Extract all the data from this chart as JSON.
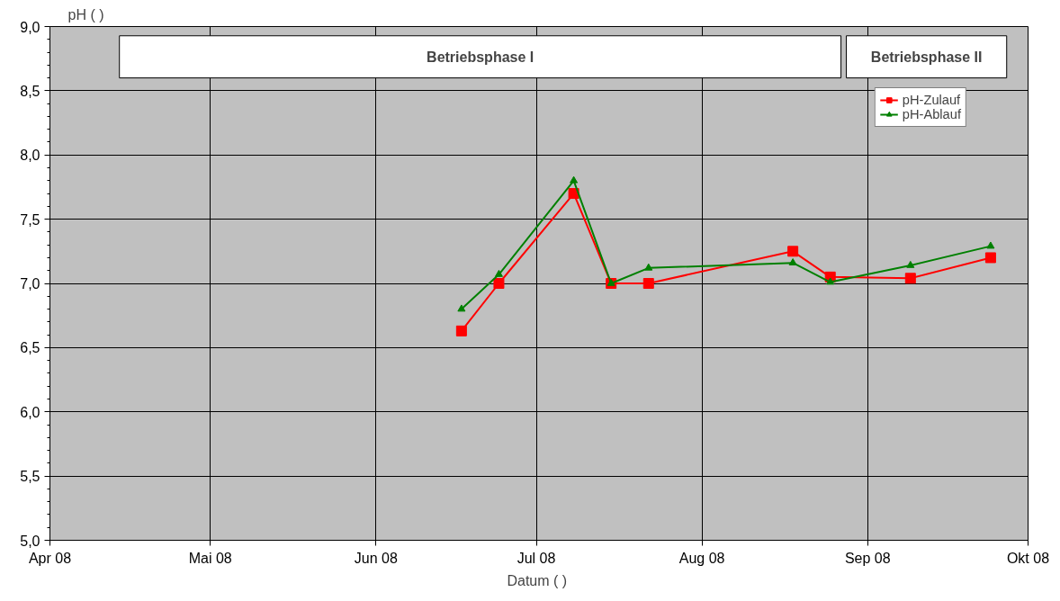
{
  "chart_data": {
    "type": "line",
    "xlabel": "Datum (  )",
    "ylabel": "pH ( )",
    "bands": [
      {
        "axis": "x",
        "from": "2008-04-14",
        "to": "2008-08-27",
        "label": "Betriebsphase I",
        "color": "#ffffff"
      },
      {
        "axis": "x",
        "from": "2008-08-28",
        "to": "2008-09-27",
        "label": "Betriebsphase II",
        "color": "#ffffff"
      }
    ],
    "x": [
      "2008-06-17",
      "2008-06-24",
      "2008-07-08",
      "2008-07-15",
      "2008-07-22",
      "2008-08-18",
      "2008-08-25",
      "2008-09-09",
      "2008-09-24"
    ],
    "series": [
      {
        "name": "pH-Zulauf",
        "color": "#ff0000",
        "marker": "square",
        "values": [
          6.63,
          7.0,
          7.7,
          7.0,
          7.0,
          7.25,
          7.05,
          7.04,
          7.2
        ]
      },
      {
        "name": "pH-Ablauf",
        "color": "#008000",
        "marker": "triangle",
        "values": [
          6.8,
          7.07,
          7.8,
          7.0,
          7.12,
          7.16,
          7.01,
          7.14,
          7.29
        ]
      }
    ],
    "xlim": [
      "2008-04-01",
      "2008-10-01"
    ],
    "xticks": [
      {
        "value": "2008-04-01",
        "label": "Apr 08"
      },
      {
        "value": "2008-05-01",
        "label": "Mai 08"
      },
      {
        "value": "2008-06-01",
        "label": "Jun 08"
      },
      {
        "value": "2008-07-01",
        "label": "Jul 08"
      },
      {
        "value": "2008-08-01",
        "label": "Aug 08"
      },
      {
        "value": "2008-09-01",
        "label": "Sep 08"
      },
      {
        "value": "2008-10-01",
        "label": "Okt 08"
      }
    ],
    "ylim": [
      5.0,
      9.0
    ],
    "yticks": [
      {
        "value": 5.0,
        "label": "5,0"
      },
      {
        "value": 5.5,
        "label": "5,5"
      },
      {
        "value": 6.0,
        "label": "6,0"
      },
      {
        "value": 6.5,
        "label": "6,5"
      },
      {
        "value": 7.0,
        "label": "7,0"
      },
      {
        "value": 7.5,
        "label": "7,5"
      },
      {
        "value": 8.0,
        "label": "8,0"
      },
      {
        "value": 8.5,
        "label": "8,5"
      },
      {
        "value": 9.0,
        "label": "9,0"
      }
    ],
    "grid": true,
    "legend": "top right",
    "line_style": "solid"
  }
}
